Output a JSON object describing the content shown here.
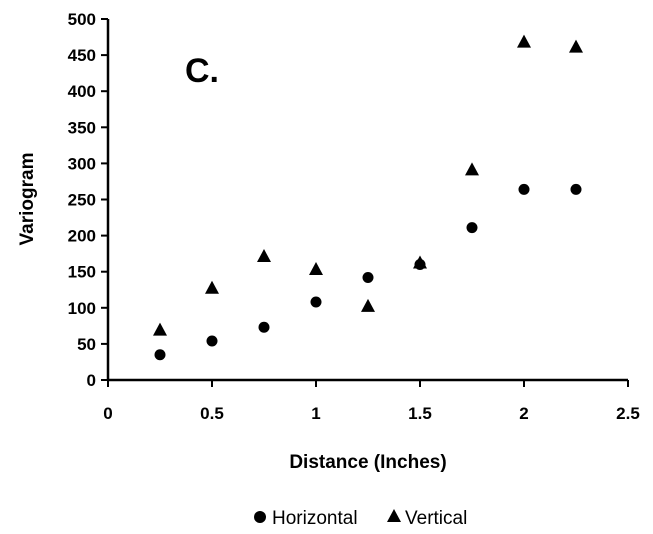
{
  "chart_data": {
    "type": "scatter",
    "panel_label": "C.",
    "xlabel": "Distance (Inches)",
    "ylabel": "Variogram",
    "xlim": [
      0,
      2.5
    ],
    "ylim": [
      0,
      500
    ],
    "x_ticks": [
      0,
      0.5,
      1,
      1.5,
      2,
      2.5
    ],
    "y_ticks": [
      0,
      50,
      100,
      150,
      200,
      250,
      300,
      350,
      400,
      450,
      500
    ],
    "x_tick_labels": [
      "0",
      "0.5",
      "1",
      "1.5",
      "2",
      "2.5"
    ],
    "y_tick_labels": [
      "0",
      "50",
      "100",
      "150",
      "200",
      "250",
      "300",
      "350",
      "400",
      "450",
      "500"
    ],
    "grid": false,
    "legend_position": "bottom",
    "series": [
      {
        "name": "Horizontal",
        "marker": "circle",
        "color": "#000000",
        "points": [
          {
            "x": 0.25,
            "y": 35
          },
          {
            "x": 0.5,
            "y": 54
          },
          {
            "x": 0.75,
            "y": 73
          },
          {
            "x": 1.0,
            "y": 108
          },
          {
            "x": 1.25,
            "y": 142
          },
          {
            "x": 1.5,
            "y": 160
          },
          {
            "x": 1.75,
            "y": 211
          },
          {
            "x": 2.0,
            "y": 264
          },
          {
            "x": 2.25,
            "y": 264
          }
        ]
      },
      {
        "name": "Vertical",
        "marker": "triangle",
        "color": "#000000",
        "points": [
          {
            "x": 0.25,
            "y": 69
          },
          {
            "x": 0.5,
            "y": 127
          },
          {
            "x": 0.75,
            "y": 171
          },
          {
            "x": 1.0,
            "y": 153
          },
          {
            "x": 1.25,
            "y": 102
          },
          {
            "x": 1.5,
            "y": 162
          },
          {
            "x": 1.75,
            "y": 291
          },
          {
            "x": 2.0,
            "y": 468
          },
          {
            "x": 2.25,
            "y": 461
          }
        ]
      }
    ]
  }
}
